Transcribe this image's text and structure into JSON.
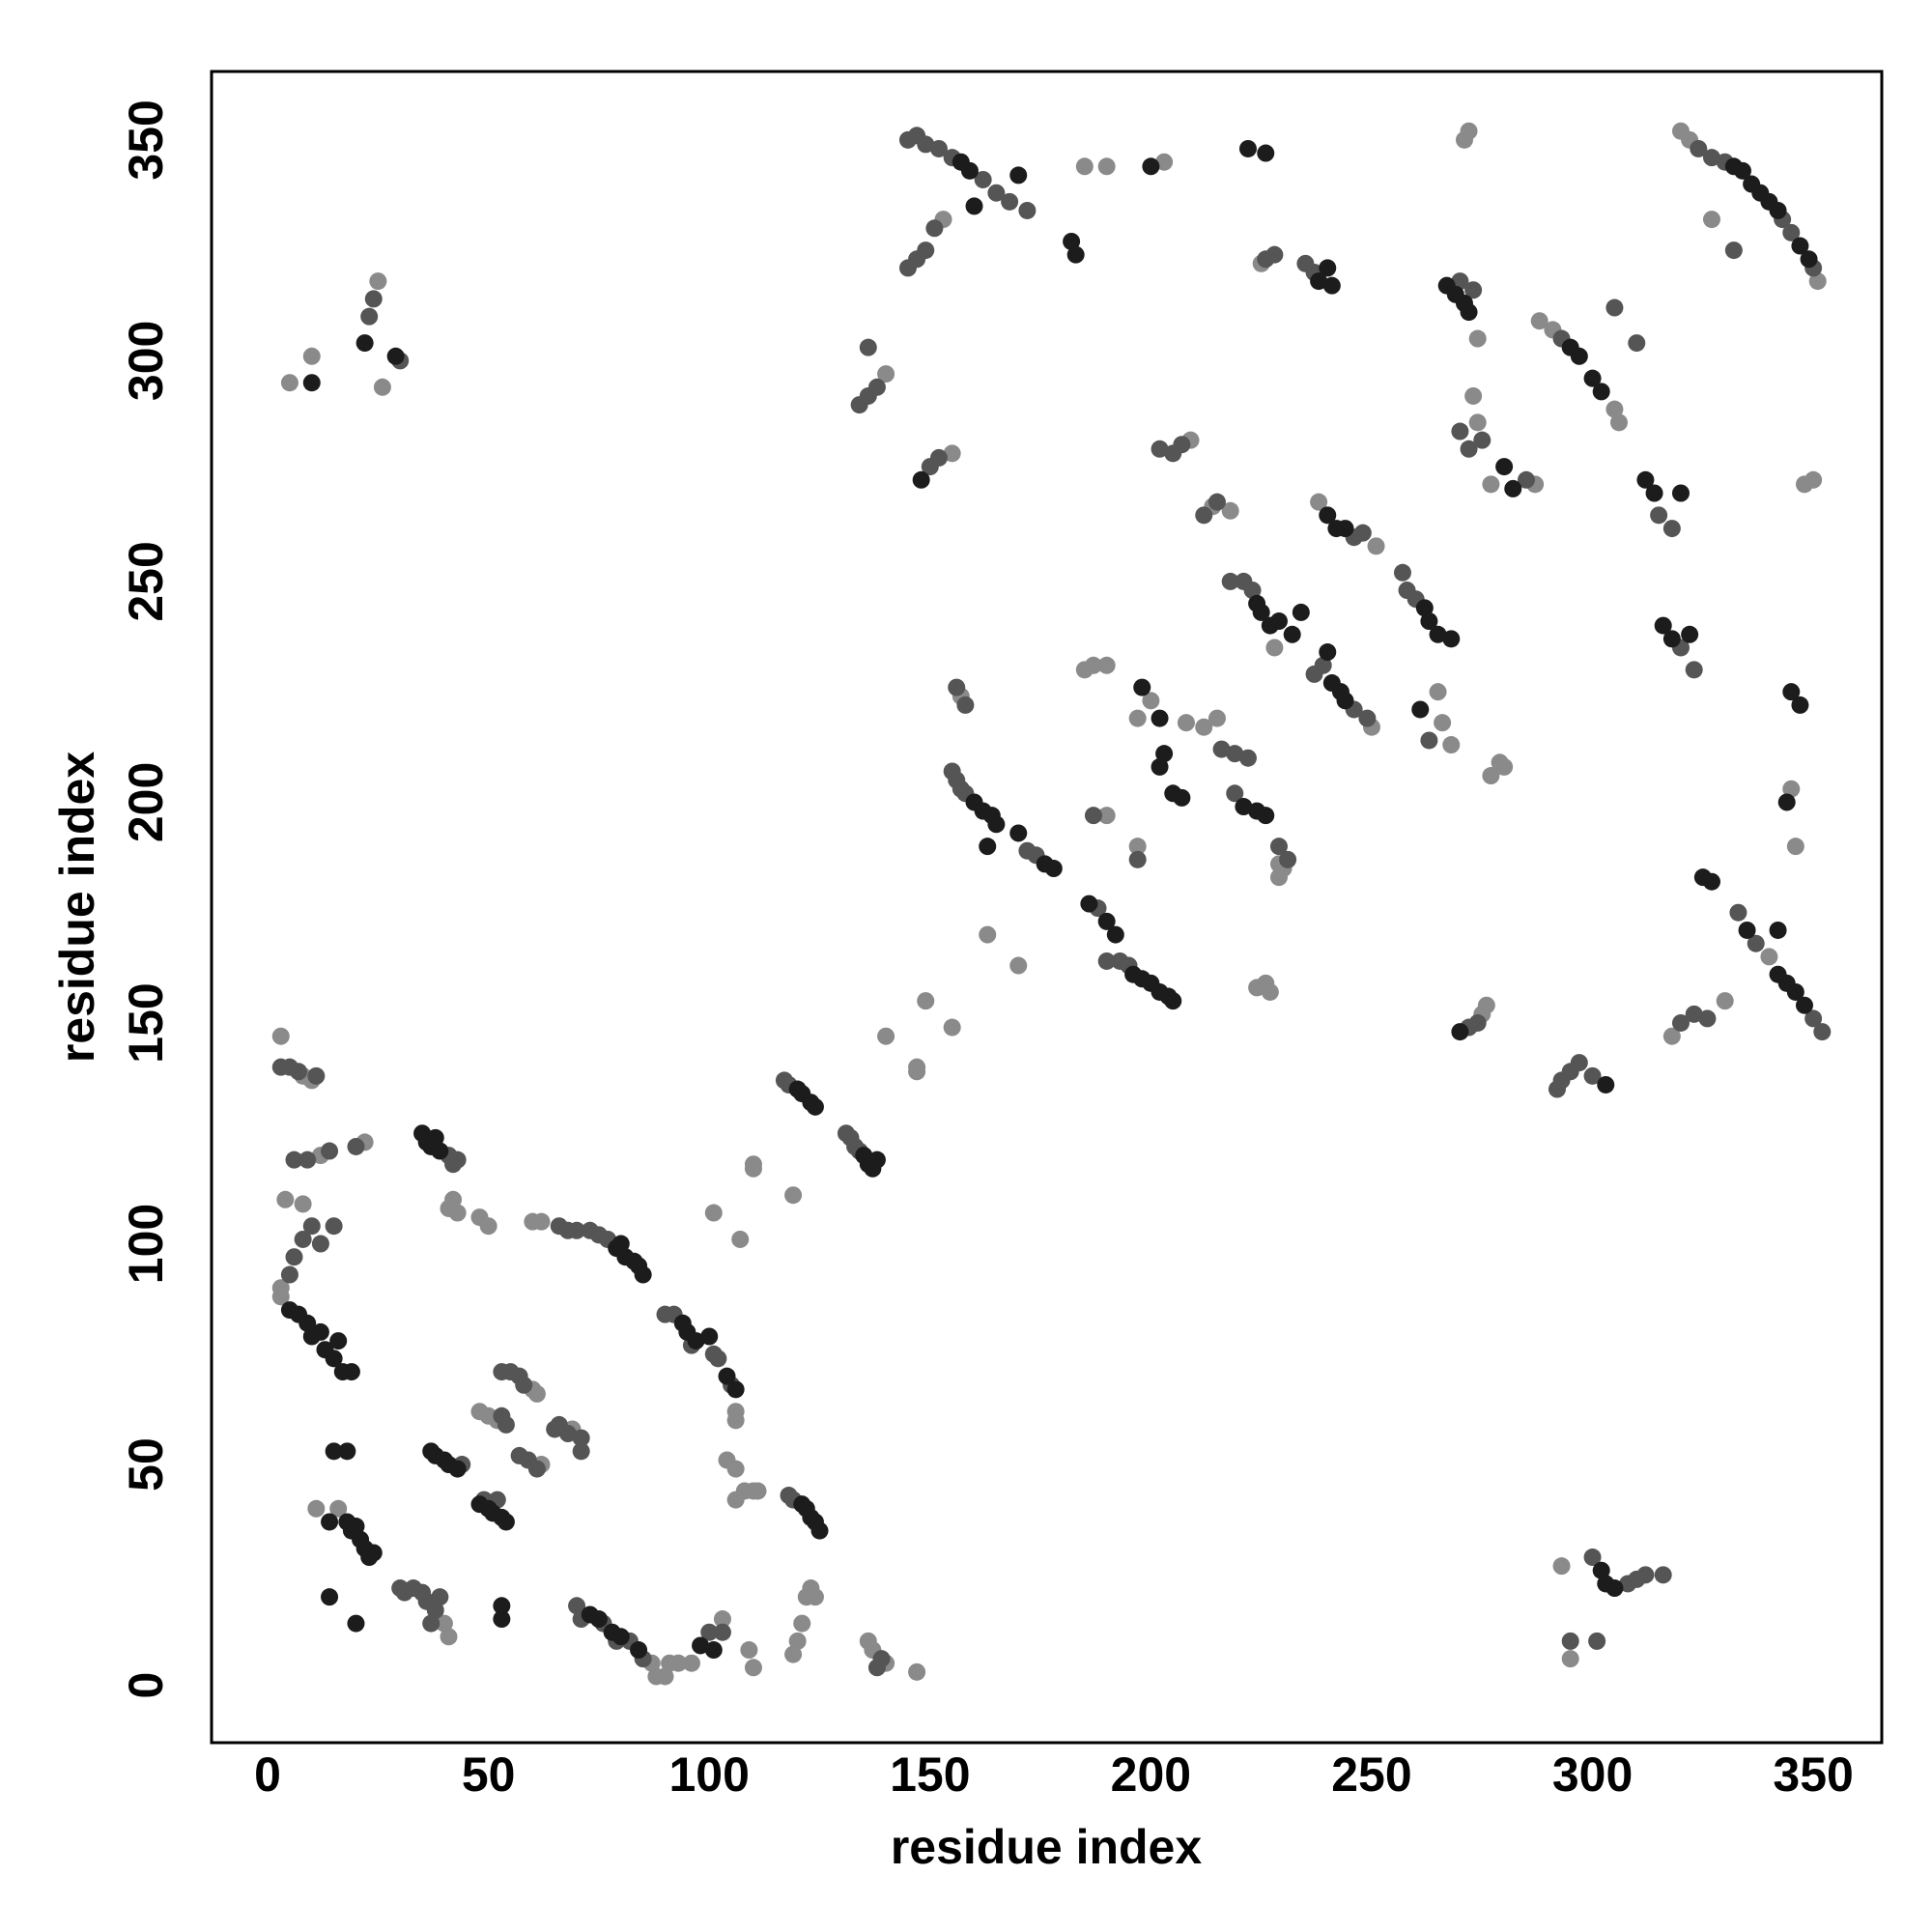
{
  "chart_data": {
    "type": "scatter",
    "xlabel": "residue index",
    "ylabel": "residue index",
    "xlim": [
      -12.7,
      365.5
    ],
    "ylim": [
      -13,
      365.5
    ],
    "xticks": [
      0,
      50,
      100,
      150,
      200,
      250,
      300,
      350
    ],
    "yticks": [
      0,
      50,
      100,
      150,
      200,
      250,
      300,
      350
    ],
    "series": [
      {
        "color": "#8a8a8a",
        "x": [
          3,
          8,
          10,
          8,
          4,
          12,
          22,
          3,
          3,
          11,
          16,
          40,
          41,
          41,
          42,
          43,
          48,
          50,
          48,
          50,
          52,
          60,
          61,
          62,
          60,
          62,
          69,
          87,
          88,
          90,
          91,
          93,
          96,
          103,
          106,
          106,
          104,
          106,
          106,
          108,
          110,
          111,
          101,
          107,
          110,
          110,
          119,
          109,
          110,
          119,
          120,
          121,
          122,
          123,
          124,
          136,
          137,
          140,
          147,
          140,
          147,
          147,
          149,
          155,
          157,
          163,
          170,
          185,
          187,
          190,
          190,
          197,
          230,
          229,
          229,
          200,
          197,
          208,
          212,
          215,
          224,
          226,
          227,
          185,
          190,
          203,
          209,
          214,
          218,
          228,
          250,
          238,
          251,
          225,
          266,
          268,
          265,
          273,
          274,
          274,
          272,
          271,
          277,
          287,
          275,
          276,
          277,
          279,
          280,
          288,
          291,
          305,
          306,
          295,
          293,
          318,
          330,
          320,
          322,
          351,
          340,
          345,
          346,
          327,
          348,
          350,
          153,
          155,
          140,
          5,
          10,
          25,
          26
        ],
        "values": [
          147,
          138,
          137,
          109,
          110,
          120,
          123,
          90,
          88,
          40,
          40,
          14,
          11,
          108,
          110,
          107,
          106,
          104,
          62,
          61,
          60,
          67,
          66,
          50,
          105,
          105,
          58,
          5,
          2,
          2,
          5,
          5,
          5,
          15,
          62,
          60,
          51,
          49,
          42,
          44,
          44,
          44,
          107,
          101,
          118,
          117,
          111,
          8,
          4,
          7,
          10,
          14,
          20,
          22,
          20,
          10,
          8,
          5,
          3,
          147,
          140,
          139,
          155,
          149,
          224,
          170,
          163,
          230,
          231,
          231,
          197,
          190,
          185,
          186,
          183,
          223,
          219,
          218,
          217,
          219,
          158,
          159,
          157,
          344,
          344,
          345,
          282,
          267,
          266,
          235,
          217,
          268,
          258,
          322,
          218,
          213,
          225,
          292,
          305,
          286,
          352,
          350,
          272,
          272,
          152,
          154,
          206,
          209,
          208,
          309,
          307,
          289,
          286,
          6,
          27,
          147,
          155,
          352,
          350,
          318,
          165,
          203,
          190,
          332,
          272,
          273,
          332,
          279,
          297,
          295,
          301,
          318,
          294
        ]
      },
      {
        "color": "#555555",
        "x": [
          3,
          5,
          7,
          11,
          6,
          9,
          14,
          20,
          5,
          6,
          8,
          10,
          12,
          15,
          30,
          31,
          33,
          35,
          36,
          38,
          37,
          39,
          41,
          42,
          43,
          49,
          52,
          44,
          53,
          54,
          53,
          55,
          57,
          58,
          57,
          59,
          61,
          65,
          66,
          68,
          71,
          71,
          66,
          68,
          70,
          73,
          75,
          77,
          70,
          71,
          76,
          79,
          82,
          85,
          100,
          103,
          90,
          92,
          96,
          101,
          102,
          105,
          118,
          119,
          117,
          118,
          131,
          132,
          133,
          134,
          138,
          139,
          155,
          156,
          157,
          158,
          172,
          174,
          188,
          193,
          195,
          190,
          156,
          158,
          187,
          197,
          219,
          216,
          219,
          222,
          229,
          231,
          218,
          221,
          223,
          237,
          239,
          246,
          249,
          246,
          248,
          235,
          237,
          226,
          228,
          257,
          258,
          260,
          263,
          270,
          273,
          270,
          272,
          275,
          285,
          272,
          274,
          293,
          297,
          300,
          300,
          308,
          310,
          312,
          316,
          305,
          310,
          315,
          318,
          320,
          323,
          320,
          323,
          326,
          324,
          327,
          330,
          343,
          345,
          350,
          333,
          337,
          350,
          352,
          145,
          147,
          149,
          151,
          150,
          152,
          134,
          136,
          138,
          136,
          145,
          147,
          149,
          152,
          155,
          162,
          165,
          168,
          172,
          23,
          24,
          30,
          212,
          215,
          202,
          205,
          207,
          295,
          301,
          292,
          293,
          295,
          332
        ],
        "values": [
          140,
          140,
          139,
          138,
          119,
          119,
          121,
          122,
          93,
          97,
          101,
          104,
          100,
          104,
          22,
          21,
          22,
          21,
          19,
          17,
          14,
          20,
          120,
          118,
          119,
          42,
          42,
          50,
          61,
          59,
          71,
          71,
          70,
          68,
          52,
          51,
          49,
          58,
          59,
          57,
          56,
          53,
          104,
          103,
          103,
          103,
          102,
          101,
          18,
          15,
          14,
          10,
          10,
          6,
          12,
          12,
          84,
          84,
          77,
          75,
          74,
          68,
          43,
          42,
          137,
          136,
          125,
          124,
          122,
          121,
          4,
          6,
          207,
          205,
          203,
          202,
          189,
          188,
          176,
          164,
          163,
          164,
          226,
          222,
          197,
          187,
          202,
          212,
          211,
          210,
          190,
          187,
          250,
          250,
          248,
          229,
          231,
          221,
          219,
          260,
          261,
          322,
          320,
          323,
          324,
          252,
          248,
          246,
          214,
          318,
          316,
          284,
          280,
          282,
          273,
          149,
          150,
          305,
          141,
          138,
          29,
          23,
          24,
          25,
          25,
          312,
          304,
          265,
          262,
          235,
          230,
          150,
          152,
          151,
          348,
          346,
          345,
          332,
          329,
          321,
          175,
          168,
          151,
          148,
          321,
          323,
          325,
          330,
          276,
          278,
          290,
          292,
          294,
          303,
          350,
          351,
          349,
          348,
          346,
          341,
          338,
          336,
          334,
          310,
          314,
          300,
          265,
          268,
          280,
          279,
          281,
          10,
          10,
          135,
          137,
          139,
          325
        ]
      },
      {
        "color": "#1c1c1c",
        "x": [
          5,
          7,
          9,
          10,
          12,
          13,
          15,
          16,
          17,
          19,
          15,
          18,
          14,
          20,
          53,
          53,
          14,
          18,
          19,
          20,
          21,
          22,
          23,
          24,
          35,
          36,
          37,
          38,
          39,
          37,
          38,
          40,
          41,
          43,
          48,
          50,
          51,
          53,
          54,
          73,
          75,
          78,
          80,
          84,
          98,
          101,
          79,
          80,
          81,
          83,
          84,
          85,
          94,
          95,
          97,
          100,
          104,
          106,
          121,
          122,
          123,
          124,
          125,
          120,
          121,
          123,
          124,
          135,
          136,
          137,
          138,
          160,
          162,
          164,
          165,
          163,
          170,
          176,
          178,
          186,
          190,
          192,
          196,
          198,
          200,
          202,
          204,
          205,
          198,
          202,
          203,
          202,
          205,
          207,
          221,
          224,
          226,
          200,
          226,
          222,
          224,
          225,
          227,
          229,
          232,
          234,
          240,
          241,
          243,
          244,
          240,
          242,
          244,
          238,
          240,
          241,
          262,
          263,
          265,
          268,
          261,
          267,
          269,
          271,
          272,
          280,
          282,
          270,
          295,
          297,
          300,
          302,
          303,
          302,
          303,
          305,
          312,
          314,
          316,
          318,
          322,
          320,
          332,
          334,
          336,
          338,
          340,
          342,
          347,
          349,
          325,
          327,
          335,
          342,
          344,
          346,
          348,
          342,
          344,
          347,
          345,
          148,
          157,
          159,
          170,
          182,
          183,
          160,
          22,
          29,
          10
        ],
        "values": [
          85,
          84,
          82,
          79,
          80,
          76,
          74,
          78,
          71,
          71,
          53,
          53,
          20,
          14,
          18,
          15,
          37,
          37,
          35,
          36,
          33,
          31,
          29,
          30,
          125,
          123,
          122,
          124,
          121,
          53,
          52,
          51,
          50,
          49,
          41,
          40,
          39,
          38,
          37,
          16,
          15,
          12,
          11,
          8,
          9,
          8,
          99,
          100,
          97,
          96,
          95,
          93,
          82,
          80,
          78,
          79,
          70,
          67,
          41,
          40,
          38,
          37,
          35,
          135,
          134,
          132,
          131,
          120,
          118,
          117,
          119,
          200,
          198,
          197,
          195,
          190,
          193,
          186,
          185,
          177,
          173,
          170,
          161,
          160,
          159,
          157,
          156,
          155,
          226,
          219,
          211,
          208,
          202,
          201,
          199,
          198,
          197,
          344,
          347,
          348,
          245,
          243,
          240,
          241,
          238,
          243,
          234,
          227,
          225,
          223,
          265,
          262,
          262,
          318,
          321,
          317,
          244,
          241,
          238,
          237,
          221,
          317,
          315,
          313,
          311,
          276,
          271,
          148,
          303,
          301,
          296,
          293,
          136,
          26,
          23,
          22,
          273,
          270,
          240,
          237,
          238,
          270,
          344,
          343,
          340,
          338,
          336,
          334,
          326,
          323,
          183,
          182,
          171,
          161,
          159,
          157,
          154,
          171,
          200,
          222,
          225,
          273,
          345,
          343,
          342,
          327,
          324,
          335,
          304,
          301,
          295
        ]
      }
    ]
  }
}
